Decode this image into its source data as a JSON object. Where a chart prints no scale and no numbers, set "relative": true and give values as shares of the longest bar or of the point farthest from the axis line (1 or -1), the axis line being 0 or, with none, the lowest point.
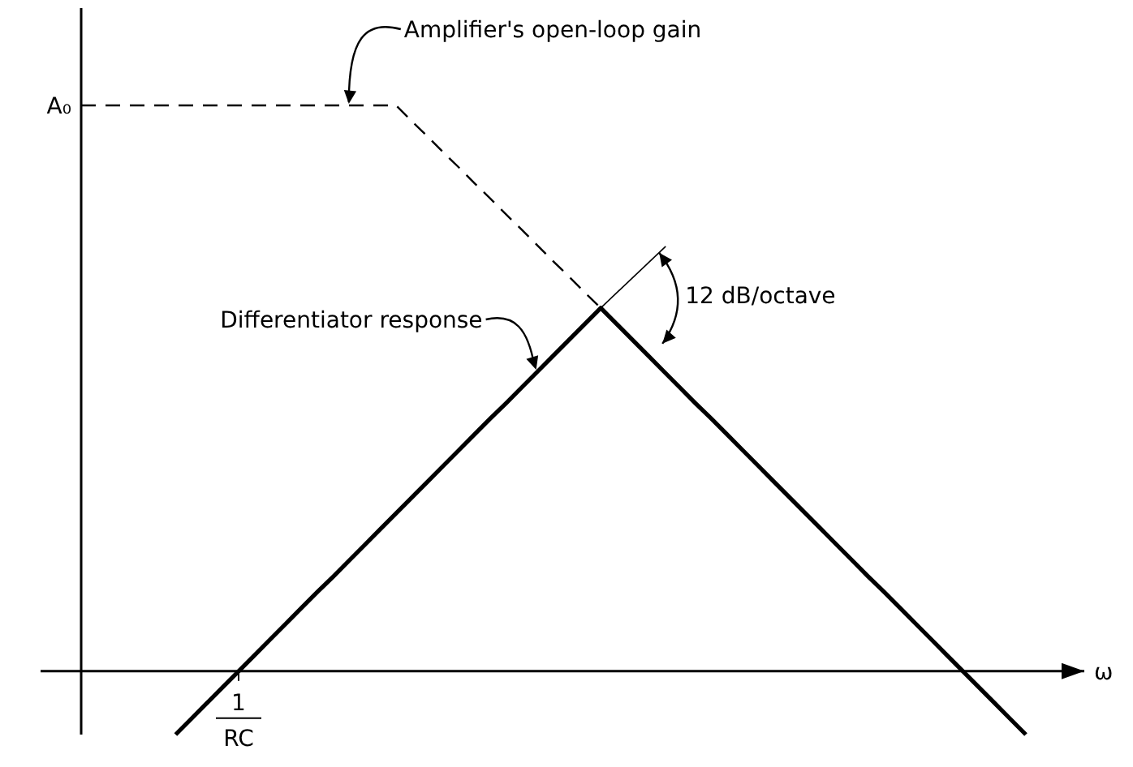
{
  "chart_data": {
    "type": "line",
    "relative": true,
    "xlabel": "ω",
    "categories": [
      null,
      null,
      null,
      null,
      null,
      null,
      null,
      null,
      null,
      null,
      null,
      null,
      null,
      null,
      null,
      null,
      null,
      null,
      null,
      null,
      null,
      null,
      null,
      null,
      null,
      null,
      null,
      null,
      null,
      null,
      null,
      null,
      null,
      null,
      null,
      null,
      null,
      null,
      null,
      null,
      null,
      null,
      null,
      null,
      null,
      null,
      null,
      null,
      null,
      null,
      null,
      null,
      null,
      null,
      null,
      null,
      null,
      null,
      null,
      null,
      null
    ],
    "series": [
      {
        "color": "#000000",
        "line_style": "dashed",
        "values": [
          1,
          1,
          1,
          1,
          1,
          1,
          1,
          1,
          1,
          1,
          1,
          1,
          1,
          1,
          1,
          1,
          1,
          1,
          1,
          1,
          1,
          0.972,
          0.945,
          0.917,
          0.89,
          0.862,
          0.835,
          0.807,
          0.78,
          0.752,
          0.724,
          0.697,
          0.669,
          0.642,
          null,
          null,
          null,
          null,
          null,
          null,
          null,
          null,
          null,
          null,
          null,
          null,
          null,
          null,
          null,
          null,
          null,
          null,
          null,
          null,
          null,
          null,
          null,
          null,
          null,
          null,
          null
        ]
      },
      {
        "color": "#000000",
        "line_style": "solid",
        "values": [
          null,
          null,
          null,
          null,
          null,
          null,
          -0.112,
          -0.084,
          -0.056,
          -0.028,
          0,
          0.028,
          0.056,
          0.084,
          0.112,
          0.14,
          0.167,
          0.195,
          0.223,
          0.251,
          0.279,
          0.307,
          0.335,
          0.363,
          0.391,
          0.419,
          0.447,
          0.474,
          0.502,
          0.53,
          0.558,
          0.586,
          0.614,
          0.642,
          0.614,
          0.586,
          0.558,
          0.53,
          0.502,
          0.474,
          0.447,
          0.419,
          0.391,
          0.363,
          0.335,
          0.307,
          0.279,
          0.251,
          0.223,
          0.195,
          0.167,
          0.14,
          0.112,
          0.084,
          0.056,
          0.028,
          0,
          -0.028,
          -0.056,
          -0.084,
          -0.112
        ]
      }
    ],
    "annotations": [
      "A₀",
      "1",
      "RC",
      "Amplifier's open-loop gain",
      "Differentiator response",
      "12 dB/octave"
    ]
  }
}
